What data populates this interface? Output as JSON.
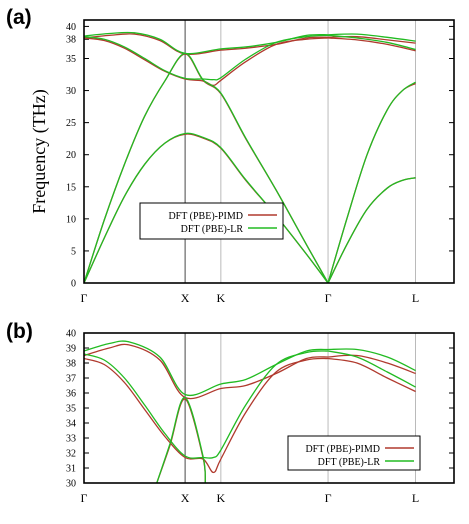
{
  "colors": {
    "pimd": "#b03a2e",
    "lr": "#22bb22",
    "vline": "#555555",
    "frame": "#000000"
  },
  "chart_data": [
    {
      "type": "line",
      "panel_label": "(a)",
      "ylabel": "Frequency (THz)",
      "ylim": [
        0,
        41
      ],
      "xlim": [
        0,
        3.66
      ],
      "yticks": [
        0,
        5,
        10,
        15,
        20,
        25,
        30,
        35,
        38,
        40
      ],
      "xticks": [
        {
          "label": "Γ",
          "x": 0
        },
        {
          "label": "X",
          "x": 1
        },
        {
          "label": "K",
          "x": 1.354
        },
        {
          "label": "Γ",
          "x": 2.414
        },
        {
          "label": "L",
          "x": 3.28
        }
      ],
      "legend": {
        "placement": "center-left",
        "entries": [
          "DFT (PBE)-PIMD",
          "DFT (PBE)-LR"
        ]
      },
      "series": [
        {
          "name": "DFT (PBE)-PIMD",
          "curves": [
            [
              [
                0,
                0
              ],
              [
                0.2,
                7.0
              ],
              [
                0.4,
                13.5
              ],
              [
                0.6,
                18.5
              ],
              [
                0.8,
                21.8
              ],
              [
                1,
                23.2
              ],
              [
                1.177,
                22.6
              ],
              [
                1.354,
                21.0
              ],
              [
                1.6,
                16.0
              ],
              [
                1.9,
                10.5
              ],
              [
                2.2,
                4.5
              ],
              [
                2.414,
                0
              ]
            ],
            [
              [
                0,
                0
              ],
              [
                0.2,
                9.8
              ],
              [
                0.4,
                18.5
              ],
              [
                0.6,
                26.0
              ],
              [
                0.8,
                31.5
              ],
              [
                1,
                35.7
              ],
              [
                1.177,
                31.6
              ],
              [
                1.354,
                29.5
              ],
              [
                1.6,
                22.5
              ],
              [
                1.9,
                14.5
              ],
              [
                2.2,
                6.0
              ],
              [
                2.414,
                0
              ]
            ],
            [
              [
                0,
                38.2
              ],
              [
                0.2,
                37.8
              ],
              [
                0.4,
                36.6
              ],
              [
                0.6,
                34.8
              ],
              [
                0.8,
                33.0
              ],
              [
                1,
                31.8
              ],
              [
                1.177,
                31.5
              ],
              [
                1.28,
                30.8
              ],
              [
                1.354,
                31.6
              ],
              [
                1.6,
                34.5
              ],
              [
                1.9,
                37.2
              ],
              [
                2.2,
                38.0
              ],
              [
                2.414,
                38.2
              ]
            ],
            [
              [
                0,
                38.2
              ],
              [
                0.25,
                38.6
              ],
              [
                0.5,
                38.8
              ],
              [
                0.75,
                37.8
              ],
              [
                1,
                35.7
              ],
              [
                1.354,
                36.3
              ],
              [
                1.6,
                36.6
              ],
              [
                1.9,
                37.2
              ],
              [
                2.2,
                38.2
              ],
              [
                2.414,
                38.3
              ]
            ],
            [
              [
                2.414,
                0
              ],
              [
                2.6,
                6.0
              ],
              [
                2.8,
                11.5
              ],
              [
                3.0,
                14.8
              ],
              [
                3.15,
                16.0
              ],
              [
                3.28,
                16.4
              ]
            ],
            [
              [
                2.414,
                0
              ],
              [
                2.6,
                10.0
              ],
              [
                2.8,
                20.0
              ],
              [
                3.0,
                27.0
              ],
              [
                3.15,
                30.0
              ],
              [
                3.28,
                31.1
              ]
            ],
            [
              [
                2.414,
                38.2
              ],
              [
                2.7,
                37.9
              ],
              [
                3.0,
                37.2
              ],
              [
                3.28,
                36.2
              ]
            ],
            [
              [
                2.414,
                38.3
              ],
              [
                2.7,
                38.4
              ],
              [
                3.0,
                37.9
              ],
              [
                3.28,
                37.4
              ]
            ]
          ]
        },
        {
          "name": "DFT (PBE)-LR",
          "curves": [
            [
              [
                0,
                0
              ],
              [
                0.2,
                7.0
              ],
              [
                0.4,
                13.5
              ],
              [
                0.6,
                18.5
              ],
              [
                0.8,
                21.8
              ],
              [
                1,
                23.3
              ],
              [
                1.177,
                22.7
              ],
              [
                1.354,
                21.1
              ],
              [
                1.6,
                16.1
              ],
              [
                1.9,
                10.5
              ],
              [
                2.2,
                4.5
              ],
              [
                2.414,
                0
              ]
            ],
            [
              [
                0,
                0
              ],
              [
                0.2,
                9.8
              ],
              [
                0.4,
                18.5
              ],
              [
                0.6,
                26.0
              ],
              [
                0.8,
                31.5
              ],
              [
                1,
                35.8
              ],
              [
                1.177,
                31.7
              ],
              [
                1.354,
                29.6
              ],
              [
                1.6,
                22.6
              ],
              [
                1.9,
                14.5
              ],
              [
                2.2,
                6.0
              ],
              [
                2.414,
                0
              ]
            ],
            [
              [
                0,
                38.4
              ],
              [
                0.2,
                38.0
              ],
              [
                0.4,
                36.8
              ],
              [
                0.6,
                35.0
              ],
              [
                0.8,
                33.1
              ],
              [
                1,
                31.9
              ],
              [
                1.177,
                31.8
              ],
              [
                1.28,
                31.7
              ],
              [
                1.354,
                32.0
              ],
              [
                1.6,
                34.9
              ],
              [
                1.9,
                37.5
              ],
              [
                2.2,
                38.4
              ],
              [
                2.414,
                38.6
              ]
            ],
            [
              [
                0,
                38.5
              ],
              [
                0.25,
                38.9
              ],
              [
                0.5,
                39.0
              ],
              [
                0.75,
                38.0
              ],
              [
                1,
                35.8
              ],
              [
                1.354,
                36.5
              ],
              [
                1.6,
                36.8
              ],
              [
                1.9,
                37.5
              ],
              [
                2.2,
                38.6
              ],
              [
                2.414,
                38.7
              ]
            ],
            [
              [
                2.414,
                0
              ],
              [
                2.6,
                6.0
              ],
              [
                2.8,
                11.5
              ],
              [
                3.0,
                14.8
              ],
              [
                3.15,
                16.0
              ],
              [
                3.28,
                16.4
              ]
            ],
            [
              [
                2.414,
                0
              ],
              [
                2.6,
                10.0
              ],
              [
                2.8,
                20.0
              ],
              [
                3.0,
                27.0
              ],
              [
                3.15,
                30.0
              ],
              [
                3.28,
                31.3
              ]
            ],
            [
              [
                2.414,
                38.6
              ],
              [
                2.7,
                38.2
              ],
              [
                3.0,
                37.5
              ],
              [
                3.28,
                36.4
              ]
            ],
            [
              [
                2.414,
                38.7
              ],
              [
                2.7,
                38.8
              ],
              [
                3.0,
                38.3
              ],
              [
                3.28,
                37.7
              ]
            ]
          ]
        }
      ]
    },
    {
      "type": "line",
      "panel_label": "(b)",
      "ylabel": "",
      "ylim": [
        30,
        40
      ],
      "xlim": [
        0,
        3.66
      ],
      "yticks": [
        30,
        31,
        32,
        33,
        34,
        35,
        36,
        37,
        38,
        39,
        40
      ],
      "xticks": [
        {
          "label": "Γ",
          "x": 0
        },
        {
          "label": "X",
          "x": 1
        },
        {
          "label": "K",
          "x": 1.354
        },
        {
          "label": "Γ",
          "x": 2.414
        },
        {
          "label": "L",
          "x": 3.28
        }
      ],
      "legend": {
        "placement": "bottom-right",
        "entries": [
          "DFT (PBE)-PIMD",
          "DFT (PBE)-LR"
        ]
      },
      "series": [
        {
          "name": "DFT (PBE)-PIMD",
          "curves": [
            [
              [
                0,
                38.3
              ],
              [
                0.2,
                37.9
              ],
              [
                0.4,
                36.7
              ],
              [
                0.6,
                34.9
              ],
              [
                0.8,
                33.1
              ],
              [
                1,
                31.7
              ],
              [
                1.177,
                31.6
              ],
              [
                1.28,
                30.7
              ],
              [
                1.354,
                31.6
              ],
              [
                1.6,
                34.7
              ],
              [
                1.9,
                37.4
              ],
              [
                2.2,
                38.2
              ],
              [
                2.414,
                38.3
              ]
            ],
            [
              [
                0,
                38.5
              ],
              [
                0.25,
                39.0
              ],
              [
                0.45,
                39.2
              ],
              [
                0.75,
                38.2
              ],
              [
                1,
                35.7
              ],
              [
                1.354,
                36.3
              ],
              [
                1.6,
                36.5
              ],
              [
                1.9,
                37.3
              ],
              [
                2.2,
                38.3
              ],
              [
                2.414,
                38.4
              ]
            ],
            [
              [
                0.72,
                30
              ],
              [
                0.85,
                32.5
              ],
              [
                1,
                35.6
              ],
              [
                1.177,
                31.7
              ],
              [
                1.2,
                30
              ]
            ],
            [
              [
                2.414,
                38.3
              ],
              [
                2.7,
                38.0
              ],
              [
                3.0,
                37.0
              ],
              [
                3.28,
                36.1
              ]
            ],
            [
              [
                2.414,
                38.4
              ],
              [
                2.7,
                38.5
              ],
              [
                3.0,
                38.0
              ],
              [
                3.28,
                37.3
              ]
            ]
          ]
        },
        {
          "name": "DFT (PBE)-LR",
          "curves": [
            [
              [
                0,
                38.6
              ],
              [
                0.2,
                38.2
              ],
              [
                0.4,
                37.0
              ],
              [
                0.6,
                35.2
              ],
              [
                0.8,
                33.3
              ],
              [
                1,
                31.8
              ],
              [
                1.177,
                31.7
              ],
              [
                1.28,
                31.7
              ],
              [
                1.354,
                32.2
              ],
              [
                1.6,
                35.2
              ],
              [
                1.9,
                37.9
              ],
              [
                2.2,
                38.7
              ],
              [
                2.414,
                38.8
              ]
            ],
            [
              [
                0,
                38.8
              ],
              [
                0.25,
                39.3
              ],
              [
                0.45,
                39.4
              ],
              [
                0.75,
                38.4
              ],
              [
                1,
                35.9
              ],
              [
                1.354,
                36.6
              ],
              [
                1.6,
                36.9
              ],
              [
                1.9,
                37.9
              ],
              [
                2.2,
                38.8
              ],
              [
                2.414,
                38.9
              ]
            ],
            [
              [
                0.72,
                30
              ],
              [
                0.85,
                32.6
              ],
              [
                1,
                35.7
              ],
              [
                1.177,
                31.8
              ],
              [
                1.2,
                30
              ]
            ],
            [
              [
                2.414,
                38.8
              ],
              [
                2.7,
                38.4
              ],
              [
                3.0,
                37.4
              ],
              [
                3.28,
                36.4
              ]
            ],
            [
              [
                2.414,
                38.9
              ],
              [
                2.7,
                38.9
              ],
              [
                3.0,
                38.4
              ],
              [
                3.28,
                37.5
              ]
            ]
          ]
        }
      ]
    }
  ]
}
